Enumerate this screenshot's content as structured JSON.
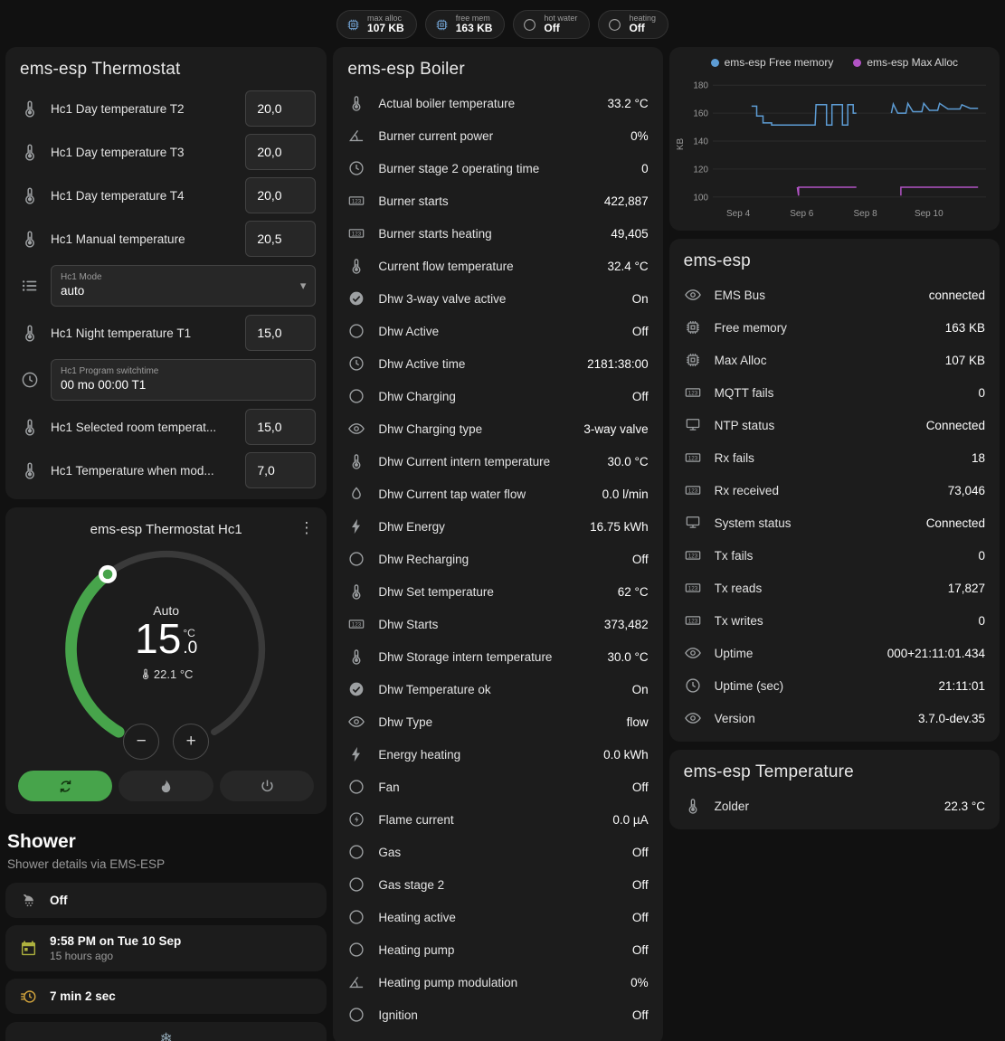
{
  "badges": [
    {
      "icon": "chip",
      "icon_color": "#6d9bc9",
      "label": "max alloc",
      "value": "107 KB"
    },
    {
      "icon": "chip",
      "icon_color": "#6d9bc9",
      "label": "free mem",
      "value": "163 KB"
    },
    {
      "icon": "circle",
      "icon_color": "#9e9e9e",
      "label": "hot water",
      "value": "Off"
    },
    {
      "icon": "circle",
      "icon_color": "#9e9e9e",
      "label": "heating",
      "value": "Off"
    }
  ],
  "thermostat_card": {
    "title": "ems-esp Thermostat",
    "rows": [
      {
        "type": "number",
        "icon": "thermo",
        "label": "Hc1 Day temperature T2",
        "value": "20,0"
      },
      {
        "type": "number",
        "icon": "thermo",
        "label": "Hc1 Day temperature T3",
        "value": "20,0"
      },
      {
        "type": "number",
        "icon": "thermo",
        "label": "Hc1 Day temperature T4",
        "value": "20,0"
      },
      {
        "type": "number",
        "icon": "thermo",
        "label": "Hc1 Manual temperature",
        "value": "20,5"
      },
      {
        "type": "select",
        "icon": "list",
        "label": "Hc1 Mode",
        "value": "auto"
      },
      {
        "type": "number",
        "icon": "thermo",
        "label": "Hc1 Night temperature T1",
        "value": "15,0"
      },
      {
        "type": "text",
        "icon": "clock",
        "label": "Hc1 Program switchtime",
        "value": "00 mo 00:00 T1"
      },
      {
        "type": "number",
        "icon": "thermo",
        "label": "Hc1 Selected room temperat...",
        "value": "15,0"
      },
      {
        "type": "number",
        "icon": "thermo",
        "label": "Hc1 Temperature when mod...",
        "value": "7,0"
      }
    ]
  },
  "dial_card": {
    "title": "ems-esp Thermostat Hc1",
    "mode_label": "Auto",
    "temp_main": "15",
    "temp_decimal": ".0",
    "temp_unit": "°C",
    "current_temp": "22.1 °C",
    "minus": "−",
    "plus": "+",
    "accent_green": "#47a44b",
    "modes": [
      {
        "icon": "autorenew",
        "active": true
      },
      {
        "icon": "flame",
        "active": false
      },
      {
        "icon": "power",
        "active": false
      }
    ]
  },
  "shower": {
    "title": "Shower",
    "subtitle": "Shower details via EMS-ESP",
    "cards": [
      {
        "icon": "shower",
        "icon_color": "#9e9e9e",
        "value": "Off",
        "sub": ""
      },
      {
        "icon": "calendar",
        "icon_color": "#aeb23e",
        "value": "9:58 PM on Tue 10 Sep",
        "sub": "15 hours ago"
      },
      {
        "icon": "timer",
        "icon_color": "#d2a43c",
        "value": "7 min 2 sec",
        "sub": ""
      }
    ]
  },
  "boiler_card": {
    "title": "ems-esp Boiler",
    "rows": [
      {
        "icon": "thermo",
        "label": "Actual boiler temperature",
        "value": "33.2 °C"
      },
      {
        "icon": "angle",
        "label": "Burner current power",
        "value": "0%"
      },
      {
        "icon": "clock",
        "label": "Burner stage 2 operating time",
        "value": "0"
      },
      {
        "icon": "counter",
        "label": "Burner starts",
        "value": "422,887"
      },
      {
        "icon": "counter",
        "label": "Burner starts heating",
        "value": "49,405"
      },
      {
        "icon": "thermo",
        "label": "Current flow temperature",
        "value": "32.4 °C"
      },
      {
        "icon": "check",
        "label": "Dhw 3-way valve active",
        "value": "On"
      },
      {
        "icon": "circle",
        "label": "Dhw Active",
        "value": "Off"
      },
      {
        "icon": "clock",
        "label": "Dhw Active time",
        "value": "2181:38:00"
      },
      {
        "icon": "circle",
        "label": "Dhw Charging",
        "value": "Off"
      },
      {
        "icon": "eye",
        "label": "Dhw Charging type",
        "value": "3-way valve"
      },
      {
        "icon": "thermo",
        "label": "Dhw Current intern temperature",
        "value": "30.0 °C"
      },
      {
        "icon": "pump",
        "label": "Dhw Current tap water flow",
        "value": "0.0 l/min"
      },
      {
        "icon": "flash",
        "label": "Dhw Energy",
        "value": "16.75 kWh"
      },
      {
        "icon": "circle",
        "label": "Dhw Recharging",
        "value": "Off"
      },
      {
        "icon": "thermo",
        "label": "Dhw Set temperature",
        "value": "62 °C"
      },
      {
        "icon": "counter",
        "label": "Dhw Starts",
        "value": "373,482"
      },
      {
        "icon": "thermo",
        "label": "Dhw Storage intern temperature",
        "value": "30.0 °C"
      },
      {
        "icon": "check",
        "label": "Dhw Temperature ok",
        "value": "On"
      },
      {
        "icon": "eye",
        "label": "Dhw Type",
        "value": "flow"
      },
      {
        "icon": "flash",
        "label": "Energy heating",
        "value": "0.0 kWh"
      },
      {
        "icon": "circle",
        "label": "Fan",
        "value": "Off"
      },
      {
        "icon": "flashcircle",
        "label": "Flame current",
        "value": "0.0 µA"
      },
      {
        "icon": "circle",
        "label": "Gas",
        "value": "Off"
      },
      {
        "icon": "circle",
        "label": "Gas stage 2",
        "value": "Off"
      },
      {
        "icon": "circle",
        "label": "Heating active",
        "value": "Off"
      },
      {
        "icon": "circle",
        "label": "Heating pump",
        "value": "Off"
      },
      {
        "icon": "angle",
        "label": "Heating pump modulation",
        "value": "0%"
      },
      {
        "icon": "circle",
        "label": "Ignition",
        "value": "Off"
      }
    ]
  },
  "emsesp_card": {
    "title": "ems-esp",
    "rows": [
      {
        "icon": "eye",
        "label": "EMS Bus",
        "value": "connected"
      },
      {
        "icon": "chip",
        "label": "Free memory",
        "value": "163 KB"
      },
      {
        "icon": "chip",
        "label": "Max Alloc",
        "value": "107 KB"
      },
      {
        "icon": "counter",
        "label": "MQTT fails",
        "value": "0"
      },
      {
        "icon": "network",
        "label": "NTP status",
        "value": "Connected"
      },
      {
        "icon": "counter",
        "label": "Rx fails",
        "value": "18"
      },
      {
        "icon": "counter",
        "label": "Rx received",
        "value": "73,046"
      },
      {
        "icon": "network",
        "label": "System status",
        "value": "Connected"
      },
      {
        "icon": "counter",
        "label": "Tx fails",
        "value": "0"
      },
      {
        "icon": "counter",
        "label": "Tx reads",
        "value": "17,827"
      },
      {
        "icon": "counter",
        "label": "Tx writes",
        "value": "0"
      },
      {
        "icon": "eye",
        "label": "Uptime",
        "value": "000+21:11:01.434"
      },
      {
        "icon": "clock",
        "label": "Uptime (sec)",
        "value": "21:11:01"
      },
      {
        "icon": "eye",
        "label": "Version",
        "value": "3.7.0-dev.35"
      }
    ]
  },
  "temperature_card": {
    "title": "ems-esp Temperature",
    "rows": [
      {
        "icon": "thermo",
        "label": "Zolder",
        "value": "22.3 °C"
      }
    ]
  },
  "chart_data": {
    "type": "line",
    "title": "",
    "xlabel": "",
    "ylabel": "KB",
    "ylim": [
      96,
      184
    ],
    "yticks": [
      100,
      120,
      140,
      160,
      180
    ],
    "xlim": [
      3.2,
      11.8
    ],
    "xticks": [
      {
        "x": 4,
        "label": "Sep 4"
      },
      {
        "x": 6,
        "label": "Sep 6"
      },
      {
        "x": 8,
        "label": "Sep 8"
      },
      {
        "x": 10,
        "label": "Sep 10"
      }
    ],
    "grid": true,
    "legend_position": "top",
    "series": [
      {
        "name": "ems-esp Free memory",
        "color": "#5d9cd4",
        "unit": "KB",
        "segments": [
          [
            [
              4.42,
              165
            ],
            [
              4.58,
              165
            ],
            [
              4.58,
              158
            ],
            [
              4.78,
              158
            ],
            [
              4.78,
              153
            ],
            [
              5.05,
              153
            ],
            [
              5.05,
              151.5
            ],
            [
              6.42,
              151.5
            ],
            [
              6.45,
              166
            ],
            [
              6.78,
              166
            ],
            [
              6.78,
              151.5
            ],
            [
              6.95,
              151.5
            ],
            [
              6.95,
              166
            ],
            [
              7.28,
              166
            ],
            [
              7.28,
              151.5
            ],
            [
              7.45,
              151.5
            ],
            [
              7.45,
              166
            ],
            [
              7.62,
              166
            ],
            [
              7.62,
              160
            ],
            [
              7.72,
              160
            ]
          ],
          [
            [
              8.82,
              160
            ],
            [
              8.88,
              166.5
            ],
            [
              9.02,
              160
            ],
            [
              9.28,
              160
            ],
            [
              9.34,
              167
            ],
            [
              9.5,
              161
            ],
            [
              9.78,
              161
            ],
            [
              9.84,
              167
            ],
            [
              10.02,
              162
            ],
            [
              10.28,
              162
            ],
            [
              10.34,
              167
            ],
            [
              10.6,
              163
            ],
            [
              10.98,
              163
            ],
            [
              11.04,
              166
            ],
            [
              11.3,
              163.5
            ],
            [
              11.55,
              163.5
            ]
          ]
        ]
      },
      {
        "name": "ems-esp Max Alloc",
        "color": "#b153c4",
        "unit": "KB",
        "segments": [
          [
            [
              5.86,
              107
            ],
            [
              5.9,
              101
            ],
            [
              5.9,
              107
            ],
            [
              7.72,
              107
            ]
          ],
          [
            [
              9.12,
              101
            ],
            [
              9.12,
              107
            ],
            [
              11.55,
              107
            ]
          ]
        ]
      }
    ]
  }
}
